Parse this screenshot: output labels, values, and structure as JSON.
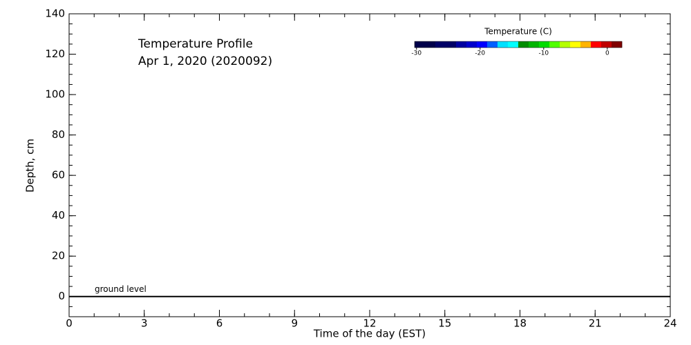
{
  "chart_data": {
    "type": "heatmap",
    "title": "Temperature Profile",
    "subtitle": "Apr  1, 2020 (2020092)",
    "x_label": "Time of the day (EST)",
    "y_label": "Depth, cm",
    "xlim": [
      0,
      24
    ],
    "xticks": [
      0,
      3,
      6,
      9,
      12,
      15,
      18,
      21,
      24
    ],
    "ylim": [
      -10,
      140
    ],
    "yticks": [
      0,
      20,
      40,
      60,
      80,
      100,
      120,
      140
    ],
    "reference_line": {
      "value": 0,
      "label": "ground level",
      "color": "#000000"
    },
    "colorbar": {
      "label": "Temperature (C)",
      "lim": [
        -30.3,
        2.3
      ],
      "ticks": [
        -30,
        -20,
        -10,
        0
      ],
      "colors": [
        "#00004a",
        "#00004a",
        "#000066",
        "#000066",
        "#0000a0",
        "#0000cc",
        "#0000ff",
        "#0060ff",
        "#00e0ff",
        "#00ffff",
        "#008c00",
        "#00b400",
        "#00dc00",
        "#50ff00",
        "#b4ff00",
        "#ffff00",
        "#ffb400",
        "#ff0000",
        "#c00000",
        "#800000"
      ]
    }
  }
}
